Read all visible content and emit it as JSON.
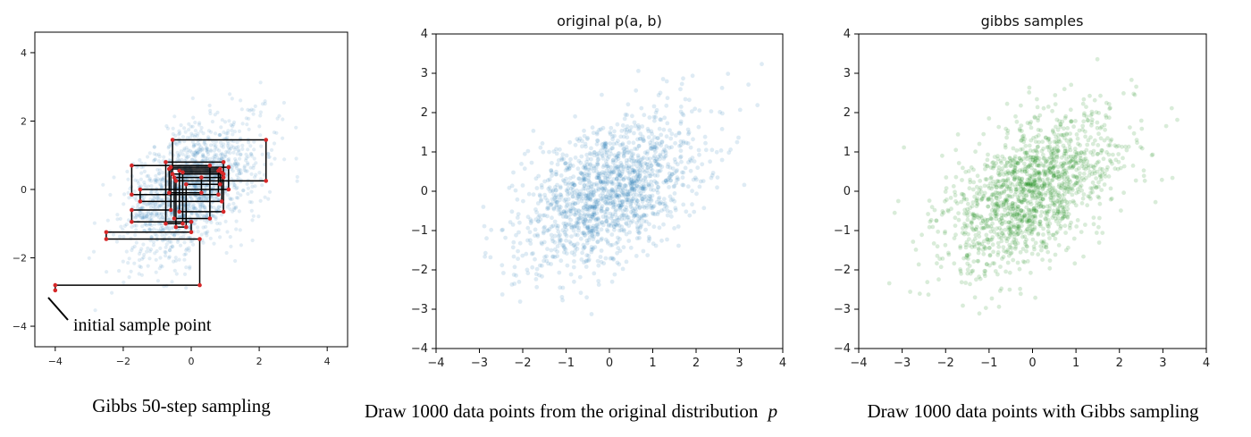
{
  "chart_data": [
    {
      "type": "scatter",
      "title": "",
      "caption": "Gibbs 50-step sampling",
      "xlim": [
        -4.6,
        4.6
      ],
      "ylim": [
        -4.6,
        4.6
      ],
      "xticks": [
        -4,
        -2,
        0,
        2,
        4
      ],
      "yticks": [
        -4,
        -2,
        0,
        2,
        4
      ],
      "grid": false,
      "point_color": "#1f77b4",
      "path_color": "#000000",
      "sample_color": "#d62728",
      "annotation": {
        "text": "initial sample point",
        "points_to": [
          -4.0,
          -2.95
        ]
      },
      "gibbs_path": [
        [
          -4.0,
          -2.95
        ],
        [
          -4.0,
          -2.8
        ],
        [
          0.25,
          -2.8
        ],
        [
          0.25,
          -1.45
        ],
        [
          -2.5,
          -1.45
        ],
        [
          -2.5,
          -1.25
        ],
        [
          0.0,
          -1.25
        ],
        [
          0.0,
          -0.95
        ],
        [
          -1.75,
          -0.95
        ],
        [
          -1.75,
          -0.6
        ],
        [
          -0.6,
          -0.6
        ],
        [
          -0.6,
          0.65
        ],
        [
          1.1,
          0.65
        ],
        [
          1.1,
          0.0
        ],
        [
          -1.5,
          0.0
        ],
        [
          -1.5,
          -0.35
        ],
        [
          0.9,
          -0.35
        ],
        [
          0.9,
          0.5
        ],
        [
          -0.25,
          0.5
        ],
        [
          -0.25,
          -1.0
        ],
        [
          -0.75,
          -1.0
        ],
        [
          -0.75,
          0.8
        ],
        [
          0.95,
          0.8
        ],
        [
          0.95,
          0.35
        ],
        [
          -0.5,
          0.35
        ],
        [
          -0.5,
          -0.85
        ],
        [
          0.55,
          -0.85
        ],
        [
          0.55,
          0.7
        ],
        [
          -1.75,
          0.7
        ],
        [
          -1.75,
          -0.15
        ],
        [
          0.8,
          -0.15
        ],
        [
          0.8,
          0.55
        ],
        [
          -0.35,
          0.55
        ],
        [
          -0.35,
          -0.65
        ],
        [
          0.95,
          -0.65
        ],
        [
          0.95,
          0.45
        ],
        [
          -0.55,
          0.45
        ],
        [
          -0.55,
          1.45
        ],
        [
          2.2,
          1.45
        ],
        [
          2.2,
          0.25
        ],
        [
          -0.45,
          0.25
        ],
        [
          -0.45,
          -1.1
        ],
        [
          -0.15,
          -1.1
        ],
        [
          -0.15,
          0.15
        ],
        [
          0.85,
          0.15
        ],
        [
          0.85,
          0.6
        ],
        [
          -0.65,
          0.6
        ],
        [
          -0.65,
          -0.1
        ],
        [
          0.3,
          -0.1
        ],
        [
          0.3,
          0.35
        ]
      ]
    },
    {
      "type": "scatter",
      "title": "original p(a, b)",
      "caption": "Draw 1000 data points from the original distribution",
      "caption_symbol": "p",
      "xlim": [
        -4,
        4
      ],
      "ylim": [
        -4,
        4
      ],
      "xticks": [
        -4,
        -3,
        -2,
        -1,
        0,
        1,
        2,
        3,
        4
      ],
      "yticks": [
        -4,
        -3,
        -2,
        -1,
        0,
        1,
        2,
        3,
        4
      ],
      "grid": false,
      "point_color": "#1f77b4",
      "distribution": {
        "mean": [
          0,
          0
        ],
        "std": [
          1,
          1
        ],
        "correlation": 0.5
      }
    },
    {
      "type": "scatter",
      "title": "gibbs samples",
      "caption": "Draw 1000 data points with Gibbs sampling",
      "xlim": [
        -4,
        4
      ],
      "ylim": [
        -4,
        4
      ],
      "xticks": [
        -4,
        -3,
        -2,
        -1,
        0,
        1,
        2,
        3,
        4
      ],
      "yticks": [
        -4,
        -3,
        -2,
        -1,
        0,
        1,
        2,
        3,
        4
      ],
      "grid": false,
      "point_color": "#008000",
      "distribution": {
        "mean": [
          0,
          0
        ],
        "std": [
          1,
          1
        ],
        "correlation": 0.5
      }
    }
  ]
}
